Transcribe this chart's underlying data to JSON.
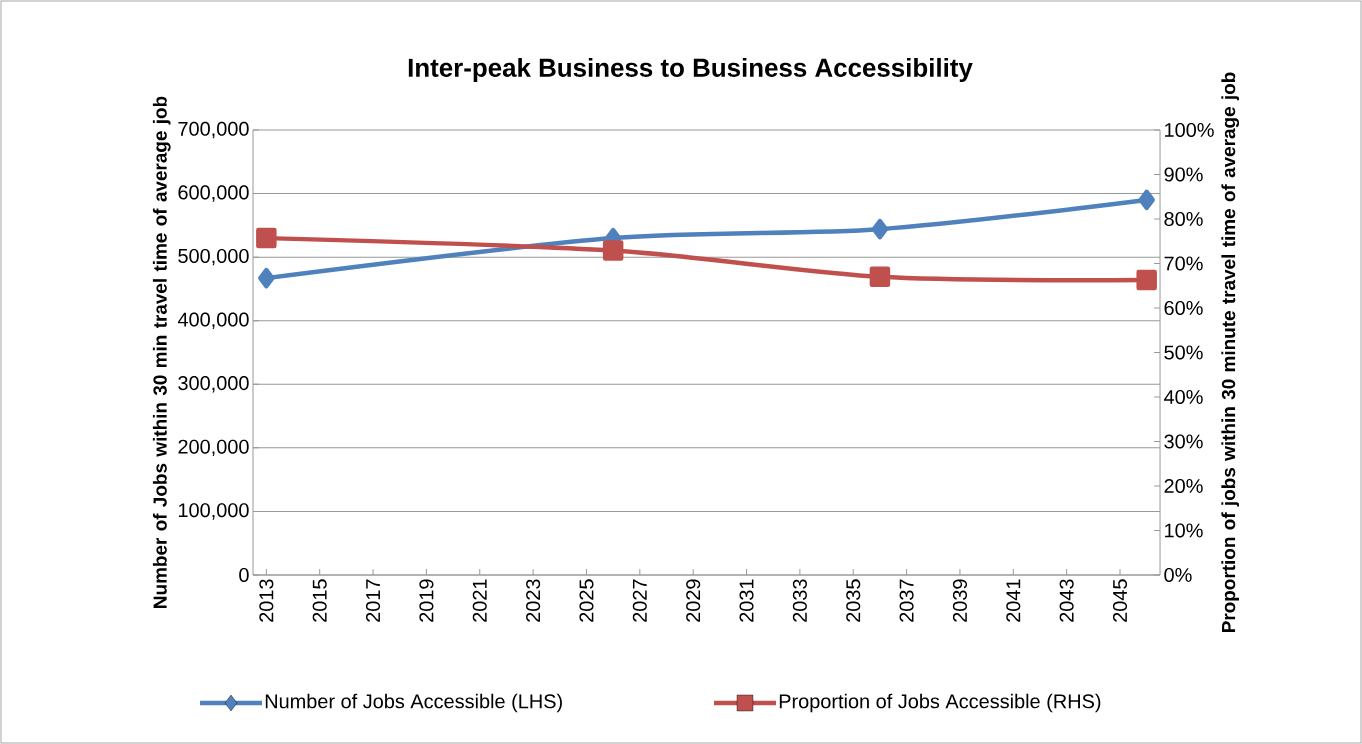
{
  "chart_data": {
    "type": "line",
    "title": "Inter-peak Business to Business Accessibility",
    "xlabel": null,
    "ylabel": "Number of Jobs within 30 min travel time of average job",
    "y2label": "Proportion of jobs within 30 minute travel time of average job",
    "x": [
      2013,
      2026,
      2036,
      2046
    ],
    "xlim": [
      2012.5,
      2046.5
    ],
    "xticks": [
      2013,
      2015,
      2017,
      2019,
      2021,
      2023,
      2025,
      2027,
      2029,
      2031,
      2033,
      2035,
      2037,
      2039,
      2041,
      2043,
      2045
    ],
    "ylim": [
      0,
      700000
    ],
    "yticks": [
      {
        "value": 0,
        "label": "0"
      },
      {
        "value": 100000,
        "label": "100,000"
      },
      {
        "value": 200000,
        "label": "200,000"
      },
      {
        "value": 300000,
        "label": "300,000"
      },
      {
        "value": 400000,
        "label": "400,000"
      },
      {
        "value": 500000,
        "label": "500,000"
      },
      {
        "value": 600000,
        "label": "600,000"
      },
      {
        "value": 700000,
        "label": "700,000"
      }
    ],
    "y2lim": [
      0,
      100
    ],
    "y2ticks": [
      {
        "value": 0,
        "label": "0%"
      },
      {
        "value": 10,
        "label": "10%"
      },
      {
        "value": 20,
        "label": "20%"
      },
      {
        "value": 30,
        "label": "30%"
      },
      {
        "value": 40,
        "label": "40%"
      },
      {
        "value": 50,
        "label": "50%"
      },
      {
        "value": 60,
        "label": "60%"
      },
      {
        "value": 70,
        "label": "70%"
      },
      {
        "value": 80,
        "label": "80%"
      },
      {
        "value": 90,
        "label": "90%"
      },
      {
        "value": 100,
        "label": "100%"
      }
    ],
    "series": [
      {
        "name": "Number of Jobs Accessible (LHS)",
        "color": "#4f81bd",
        "marker": "diamond",
        "values": [
          467000,
          530000,
          544000,
          590000
        ]
      },
      {
        "name": "Proportion of Jobs Accessible (RHS)",
        "color": "#c0504d",
        "marker": "square",
        "axis": "y2",
        "values": [
          75.7,
          72.9,
          67.0,
          66.3
        ]
      }
    ],
    "grid": "y",
    "legend": "bottom"
  }
}
